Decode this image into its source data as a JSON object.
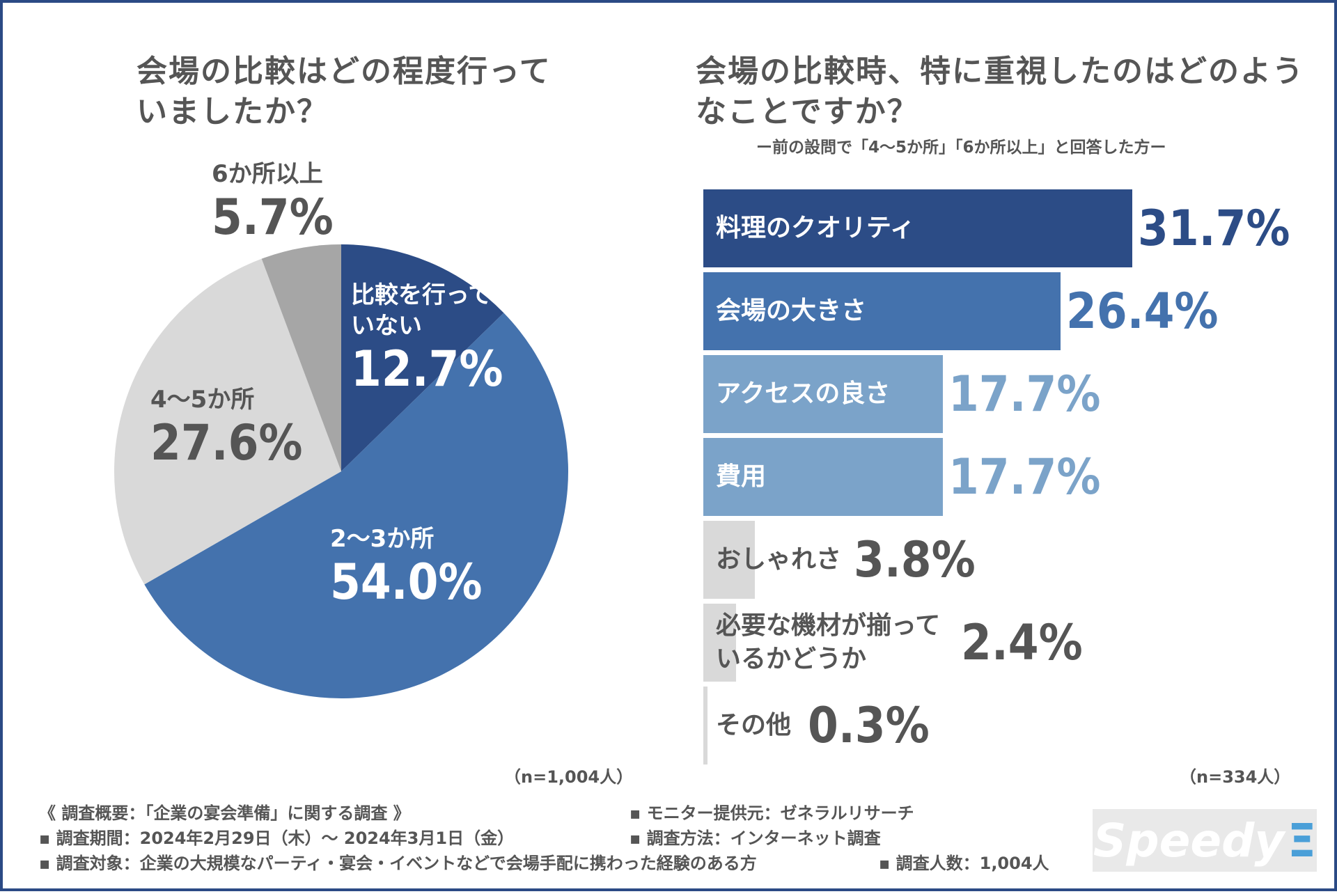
{
  "pie": {
    "title": "会場の比較はどの程度行っていましたか？",
    "n_label": "（n=1,004人）"
  },
  "bar": {
    "title": "会場の比較時、特に重視したのはどのようなことですか？",
    "subtitle": "ー前の設問で「4～5か所」「6か所以上」と回答した方ー",
    "n_label": "（n=334人）"
  },
  "chart_data": [
    {
      "type": "pie",
      "title": "会場の比較はどの程度行っていましたか？",
      "slices": [
        {
          "label": "比較を行っていない",
          "value": 12.7,
          "display": "12.7%",
          "color": "#2c4c86",
          "text_color": "#ffffff"
        },
        {
          "label": "2～3か所",
          "value": 54.0,
          "display": "54.0%",
          "color": "#4472ad",
          "text_color": "#ffffff"
        },
        {
          "label": "4～5か所",
          "value": 27.6,
          "display": "27.6%",
          "color": "#d9d9d9",
          "text_color": "#555555"
        },
        {
          "label": "6か所以上",
          "value": 5.7,
          "display": "5.7%",
          "color": "#a6a6a6",
          "text_color": "#555555"
        }
      ],
      "start": "12 o'clock",
      "direction": "clockwise"
    },
    {
      "type": "bar",
      "orientation": "horizontal",
      "title": "会場の比較時、特に重視したのはどのようなことですか？",
      "categories": [
        "料理のクオリティ",
        "会場の大きさ",
        "アクセスの良さ",
        "費用",
        "おしゃれさ",
        "必要な機材が揃っているかどうか",
        "その他"
      ],
      "values": [
        31.7,
        26.4,
        17.7,
        17.7,
        3.8,
        2.4,
        0.3
      ],
      "display": [
        "31.7%",
        "26.4%",
        "17.7%",
        "17.7%",
        "3.8%",
        "2.4%",
        "0.3%"
      ],
      "colors": [
        "#2c4c86",
        "#4472ad",
        "#7ba3c9",
        "#7ba3c9",
        "#d9d9d9",
        "#d9d9d9",
        "#d9d9d9"
      ],
      "value_colors": [
        "#2c4c86",
        "#4472ad",
        "#7ba3c9",
        "#7ba3c9",
        "#555555",
        "#555555",
        "#555555"
      ],
      "label_colors": [
        "#ffffff",
        "#ffffff",
        "#ffffff",
        "#ffffff",
        "#555555",
        "#555555",
        "#555555"
      ],
      "xlim": [
        0,
        31.7
      ]
    }
  ],
  "footer": {
    "survey_title": "《 調査概要：「企業の宴会準備」に関する調査 》",
    "period": "▪ 調査期間：2024年2月29日（木）～ 2024年3月1日（金）",
    "target": "▪ 調査対象：企業の大規模なパーティ・宴会・イベントなどで会場手配に携わった経験のある方",
    "provider": "▪ モニター提供元：ゼネラルリサーチ",
    "method": "▪ 調査方法：インターネット調査",
    "sample": "▪ 調査人数：1,004人"
  },
  "logo": {
    "text": "Speedy",
    "mark": "Ξ"
  }
}
